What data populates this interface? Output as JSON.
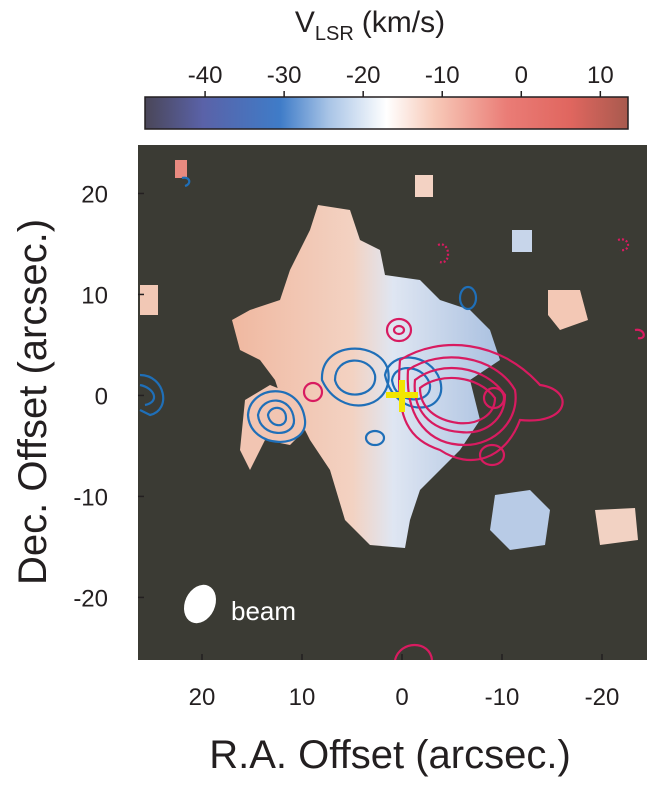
{
  "chart_data": {
    "type": "velocity-map",
    "colorbar": {
      "label": "V",
      "label_sub": "LSR",
      "label_unit": "(km/s)",
      "clim": [
        -47.6,
        13.5
      ],
      "ticks": [
        -40,
        -30,
        -20,
        -10,
        0,
        10
      ]
    },
    "xlabel": "R.A. Offset (arcsec.)",
    "ylabel": "Dec. Offset (arcsec.)",
    "xlim": [
      26.4,
      -24.5
    ],
    "xticks": [
      20,
      10,
      0,
      -10,
      -20
    ],
    "ylim": [
      -26.2,
      24.8
    ],
    "yticks": [
      20,
      10,
      0,
      -10,
      -20
    ],
    "annotation": "beam"
  }
}
